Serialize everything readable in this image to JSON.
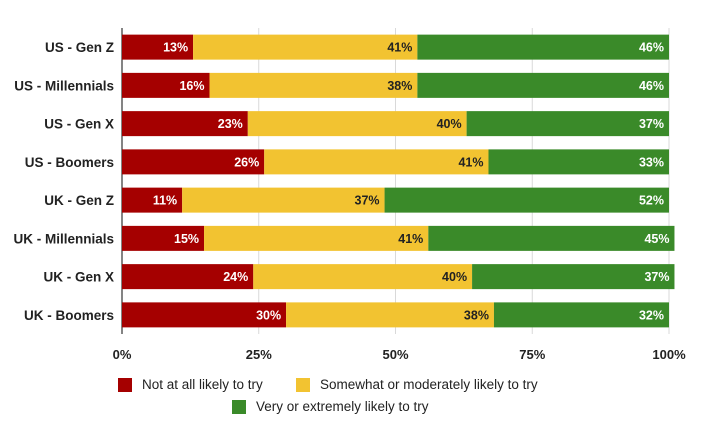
{
  "chart_data": {
    "type": "bar",
    "orientation": "horizontal",
    "stacked": true,
    "categories": [
      "US - Gen Z",
      "US - Millennials",
      "US - Gen X",
      "US - Boomers",
      "UK - Gen Z",
      "UK - Millennials",
      "UK - Gen X",
      "UK - Boomers"
    ],
    "series": [
      {
        "name": "Not at all likely to try",
        "color": "#a50000",
        "values": [
          13,
          16,
          23,
          26,
          11,
          15,
          24,
          30
        ]
      },
      {
        "name": "Somewhat or moderately likely to try",
        "color": "#f2c331",
        "values": [
          41,
          38,
          40,
          41,
          37,
          41,
          40,
          38
        ]
      },
      {
        "name": "Very or extremely likely to try",
        "color": "#3a8a29",
        "values": [
          46,
          46,
          37,
          33,
          52,
          45,
          37,
          32
        ]
      }
    ],
    "xlim": [
      0,
      100
    ],
    "xticks": [
      "0%",
      "25%",
      "50%",
      "75%",
      "100%"
    ],
    "grid": true,
    "legend_position": "bottom"
  }
}
